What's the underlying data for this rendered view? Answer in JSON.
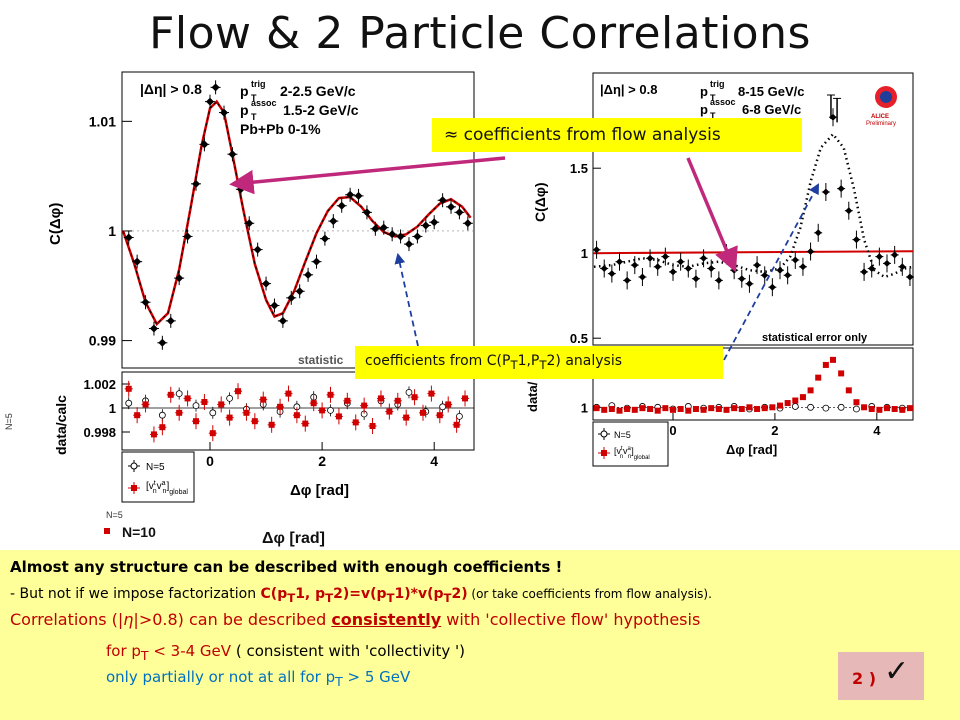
{
  "slide": {
    "title": "Flow & 2 Particle Correlations"
  },
  "chart_data": [
    {
      "type": "scatter",
      "panel": "left-top",
      "ylabel": "C(Δφ)",
      "ylim": [
        0.9875,
        1.0145
      ],
      "yticks": [
        "1.01",
        "1",
        "0.99"
      ],
      "xlim": [
        -1.57,
        4.71
      ],
      "labels": [
        "|Δη| > 0.8",
        "p",
        "trig",
        "T",
        "2-2.5 GeV/c",
        "p",
        "assoc",
        "T",
        "1.5-2 GeV/c",
        "Pb+Pb 0-1%",
        "statistic"
      ],
      "x": [
        -1.45,
        -1.3,
        -1.15,
        -1.0,
        -0.85,
        -0.7,
        -0.55,
        -0.4,
        -0.25,
        -0.1,
        0.0,
        0.1,
        0.25,
        0.4,
        0.55,
        0.7,
        0.85,
        1.0,
        1.15,
        1.3,
        1.45,
        1.6,
        1.75,
        1.9,
        2.05,
        2.2,
        2.35,
        2.5,
        2.65,
        2.8,
        2.95,
        3.1,
        3.25,
        3.4,
        3.55,
        3.7,
        3.85,
        4.0,
        4.15,
        4.3,
        4.45,
        4.6
      ],
      "y": [
        0.9994,
        0.9972,
        0.9935,
        0.9911,
        0.9898,
        0.9918,
        0.9957,
        0.9995,
        1.0043,
        1.0079,
        1.0118,
        1.0131,
        1.0108,
        1.007,
        1.0038,
        1.0007,
        0.9983,
        0.9952,
        0.9932,
        0.9918,
        0.9939,
        0.9945,
        0.996,
        0.9972,
        0.9993,
        1.0009,
        1.0023,
        1.0033,
        1.0032,
        1.0017,
        1.0002,
        1.0003,
        0.9997,
        0.9995,
        0.9988,
        0.9995,
        1.0005,
        1.0008,
        1.0028,
        1.0022,
        1.0017,
        1.0007
      ],
      "fit": [
        [
          -1.55,
          1.0
        ],
        [
          -1.35,
          0.997
        ],
        [
          -1.15,
          0.9935
        ],
        [
          -0.95,
          0.9915
        ],
        [
          -0.75,
          0.9925
        ],
        [
          -0.55,
          0.9965
        ],
        [
          -0.35,
          1.002
        ],
        [
          -0.15,
          1.0078
        ],
        [
          0.0,
          1.0112
        ],
        [
          0.12,
          1.0118
        ],
        [
          0.25,
          1.0108
        ],
        [
          0.4,
          1.007
        ],
        [
          0.6,
          1.0018
        ],
        [
          0.8,
          0.997
        ],
        [
          1.0,
          0.9937
        ],
        [
          1.15,
          0.9922
        ],
        [
          1.3,
          0.9925
        ],
        [
          1.5,
          0.9945
        ],
        [
          1.7,
          0.9972
        ],
        [
          1.9,
          0.9998
        ],
        [
          2.1,
          1.0018
        ],
        [
          2.3,
          1.003
        ],
        [
          2.5,
          1.0031
        ],
        [
          2.7,
          1.0022
        ],
        [
          2.9,
          1.0009
        ],
        [
          3.1,
          0.9999
        ],
        [
          3.3,
          0.9995
        ],
        [
          3.5,
          0.9997
        ],
        [
          3.7,
          1.0004
        ],
        [
          3.9,
          1.0015
        ],
        [
          4.1,
          1.0025
        ],
        [
          4.3,
          1.0029
        ],
        [
          4.5,
          1.0022
        ],
        [
          4.65,
          1.0012
        ]
      ],
      "colors": {
        "points": "#000000",
        "fit": "#d00000"
      }
    },
    {
      "type": "scatter",
      "panel": "left-bottom",
      "ylabel": "data/calc",
      "xlabel": "Δφ [rad]",
      "ylim": [
        0.9965,
        1.003
      ],
      "yticks": [
        "1.002",
        "1",
        "0.998"
      ],
      "xticks": [
        "0",
        "2",
        "4"
      ],
      "xlim": [
        -1.57,
        4.71
      ],
      "legend": [
        "N=5",
        "[v",
        "t",
        "n",
        "v",
        "a",
        "n",
        "]",
        "global"
      ],
      "series_black_open": [
        [
          -1.45,
          1.0004
        ],
        [
          -1.15,
          1.0006
        ],
        [
          -0.85,
          0.9994
        ],
        [
          -0.55,
          1.0012
        ],
        [
          -0.25,
          1.0002
        ],
        [
          0.05,
          0.9996
        ],
        [
          0.35,
          1.0008
        ],
        [
          0.65,
          0.9999
        ],
        [
          0.95,
          1.0003
        ],
        [
          1.25,
          0.9997
        ],
        [
          1.55,
          1.0001
        ],
        [
          1.85,
          1.0009
        ],
        [
          2.15,
          0.9998
        ],
        [
          2.45,
          1.0004
        ],
        [
          2.75,
          0.9995
        ],
        [
          3.05,
          1.0006
        ],
        [
          3.35,
          1.0003
        ],
        [
          3.55,
          1.0013
        ],
        [
          3.85,
          0.9997
        ],
        [
          4.15,
          1.0001
        ],
        [
          4.45,
          0.9993
        ]
      ],
      "series_red": [
        [
          -1.45,
          1.0016
        ],
        [
          -1.3,
          0.9994
        ],
        [
          -1.15,
          1.0003
        ],
        [
          -1.0,
          0.9978
        ],
        [
          -0.85,
          0.9984
        ],
        [
          -0.7,
          1.0011
        ],
        [
          -0.55,
          0.9996
        ],
        [
          -0.4,
          1.0008
        ],
        [
          -0.25,
          0.9989
        ],
        [
          -0.1,
          1.0005
        ],
        [
          0.05,
          0.9979
        ],
        [
          0.2,
          1.0003
        ],
        [
          0.35,
          0.9992
        ],
        [
          0.5,
          1.0014
        ],
        [
          0.65,
          0.9996
        ],
        [
          0.8,
          0.9989
        ],
        [
          0.95,
          1.0007
        ],
        [
          1.1,
          0.9986
        ],
        [
          1.25,
          1.0001
        ],
        [
          1.4,
          1.0012
        ],
        [
          1.55,
          0.9994
        ],
        [
          1.7,
          0.9987
        ],
        [
          1.85,
          1.0004
        ],
        [
          2.0,
          0.9998
        ],
        [
          2.15,
          1.0011
        ],
        [
          2.3,
          0.9993
        ],
        [
          2.45,
          1.0006
        ],
        [
          2.6,
          0.9988
        ],
        [
          2.75,
          1.0002
        ],
        [
          2.9,
          0.9985
        ],
        [
          3.05,
          1.0008
        ],
        [
          3.2,
          0.9997
        ],
        [
          3.35,
          1.0006
        ],
        [
          3.5,
          0.9992
        ],
        [
          3.65,
          1.0009
        ],
        [
          3.8,
          0.9996
        ],
        [
          3.95,
          1.0012
        ],
        [
          4.1,
          0.9994
        ],
        [
          4.25,
          1.0003
        ],
        [
          4.4,
          0.9986
        ],
        [
          4.55,
          1.0008
        ]
      ],
      "colors": {
        "open": "#000000",
        "red": "#d00000"
      }
    },
    {
      "type": "scatter",
      "panel": "right-top",
      "ylabel": "C(Δφ)",
      "ylim": [
        0.46,
        2.06
      ],
      "yticks": [
        "1.5",
        "1",
        "0.5"
      ],
      "xlim": [
        -1.57,
        4.71
      ],
      "labels": [
        "|Δη| > 0.8",
        "p",
        "trig",
        "T",
        "8-15 GeV/c",
        "p",
        "assoc",
        "T",
        "6-8 GeV/c",
        "statistical error only"
      ],
      "logo": "ALICE Preliminary",
      "x": [
        -1.5,
        -1.35,
        -1.2,
        -1.05,
        -0.9,
        -0.75,
        -0.6,
        -0.45,
        -0.3,
        -0.15,
        0.0,
        0.15,
        0.3,
        0.45,
        0.6,
        0.75,
        0.9,
        1.05,
        1.2,
        1.35,
        1.5,
        1.65,
        1.8,
        1.95,
        2.1,
        2.25,
        2.4,
        2.55,
        2.7,
        2.85,
        3.0,
        3.14,
        3.3,
        3.45,
        3.6,
        3.75,
        3.9,
        4.05,
        4.2,
        4.35,
        4.5,
        4.65
      ],
      "y": [
        1.02,
        0.91,
        0.88,
        0.95,
        0.84,
        0.93,
        0.86,
        0.97,
        0.92,
        0.98,
        0.89,
        0.95,
        0.91,
        0.85,
        0.97,
        0.91,
        0.84,
        1.0,
        0.9,
        0.85,
        0.82,
        0.93,
        0.87,
        0.8,
        0.9,
        0.87,
        0.96,
        0.92,
        1.01,
        1.12,
        1.36,
        1.8,
        1.38,
        1.25,
        1.08,
        0.89,
        0.91,
        0.98,
        0.94,
        0.99,
        0.92,
        0.86
      ],
      "high_points": [
        [
          3.1,
          1.86
        ],
        [
          3.22,
          1.84
        ]
      ],
      "flow_line_y": 1.0,
      "dotted_fit": [
        [
          -1.55,
          0.92
        ],
        [
          -1.2,
          0.93
        ],
        [
          -0.9,
          0.95
        ],
        [
          -0.6,
          0.97
        ],
        [
          -0.3,
          0.96
        ],
        [
          0.0,
          0.93
        ],
        [
          0.3,
          0.92
        ],
        [
          0.6,
          0.94
        ],
        [
          0.9,
          0.95
        ],
        [
          1.2,
          0.93
        ],
        [
          1.5,
          0.9
        ],
        [
          1.8,
          0.89
        ],
        [
          2.1,
          0.91
        ],
        [
          2.3,
          0.98
        ],
        [
          2.5,
          1.15
        ],
        [
          2.7,
          1.42
        ],
        [
          2.9,
          1.62
        ],
        [
          3.14,
          1.7
        ],
        [
          3.35,
          1.62
        ],
        [
          3.55,
          1.38
        ],
        [
          3.75,
          1.08
        ],
        [
          3.95,
          0.9
        ],
        [
          4.15,
          0.86
        ],
        [
          4.35,
          0.88
        ],
        [
          4.55,
          0.91
        ],
        [
          4.7,
          0.92
        ]
      ],
      "colors": {
        "points": "#000000",
        "flow_line": "#d00000",
        "dotted": "#000000"
      }
    },
    {
      "type": "scatter",
      "panel": "right-bottom",
      "ylabel": "data/",
      "xlabel": "Δφ [rad]",
      "yticks": [
        "1"
      ],
      "xticks": [
        "0",
        "2",
        "4"
      ],
      "xlim": [
        -1.57,
        4.71
      ],
      "legend": [
        "N=5",
        "[v",
        "t",
        "n",
        "v",
        "a",
        "n",
        "]",
        "global"
      ],
      "series_black_open": [
        [
          -1.5,
          1.0
        ],
        [
          -1.2,
          1.02
        ],
        [
          -0.9,
          0.99
        ],
        [
          -0.6,
          1.01
        ],
        [
          -0.3,
          1.0
        ],
        [
          0.0,
          0.98
        ],
        [
          0.3,
          1.01
        ],
        [
          0.6,
          0.99
        ],
        [
          0.9,
          1.0
        ],
        [
          1.2,
          1.01
        ],
        [
          1.5,
          0.98
        ],
        [
          1.8,
          1.0
        ],
        [
          2.1,
          0.99
        ],
        [
          2.4,
          1.01
        ],
        [
          2.7,
          1.0
        ],
        [
          3.0,
          0.99
        ],
        [
          3.3,
          1.0
        ],
        [
          3.6,
          0.98
        ],
        [
          3.9,
          1.01
        ],
        [
          4.2,
          1.0
        ],
        [
          4.5,
          0.99
        ]
      ],
      "series_red": [
        [
          -1.5,
          0.99
        ],
        [
          -1.35,
          0.97
        ],
        [
          -1.2,
          0.98
        ],
        [
          -1.05,
          0.96
        ],
        [
          -0.9,
          0.98
        ],
        [
          -0.75,
          0.97
        ],
        [
          -0.6,
          0.99
        ],
        [
          -0.45,
          0.98
        ],
        [
          -0.3,
          0.96
        ],
        [
          -0.15,
          0.99
        ],
        [
          0.0,
          0.97
        ],
        [
          0.15,
          0.98
        ],
        [
          0.3,
          0.96
        ],
        [
          0.45,
          0.98
        ],
        [
          0.6,
          0.97
        ],
        [
          0.75,
          0.99
        ],
        [
          0.9,
          0.98
        ],
        [
          1.05,
          0.97
        ],
        [
          1.2,
          0.99
        ],
        [
          1.35,
          0.98
        ],
        [
          1.5,
          1.0
        ],
        [
          1.65,
          0.98
        ],
        [
          1.8,
          0.99
        ],
        [
          1.95,
          1.0
        ],
        [
          2.1,
          1.02
        ],
        [
          2.25,
          1.05
        ],
        [
          2.4,
          1.08
        ],
        [
          2.55,
          1.12
        ],
        [
          2.7,
          1.2
        ],
        [
          2.85,
          1.35
        ],
        [
          3.0,
          1.5
        ],
        [
          3.14,
          1.56
        ],
        [
          3.3,
          1.4
        ],
        [
          3.45,
          1.2
        ],
        [
          3.6,
          1.06
        ],
        [
          3.75,
          1.0
        ],
        [
          3.9,
          0.98
        ],
        [
          4.05,
          0.97
        ],
        [
          4.2,
          0.99
        ],
        [
          4.35,
          0.98
        ],
        [
          4.5,
          0.97
        ],
        [
          4.65,
          0.99
        ]
      ],
      "colors": {
        "open": "#000000",
        "red": "#d00000"
      }
    }
  ],
  "ghost": {
    "legend_n10": "N=10",
    "xlabel": "Δφ [rad]",
    "partial_label": "N=5"
  },
  "callouts": {
    "flow": "≈ coefficients from flow analysis",
    "cpt": [
      "coefficients  from  C(P",
      "T",
      "1,P",
      "T",
      "2) analysis"
    ]
  },
  "notes": {
    "line1": "Almost any structure can be described with enough coefficients !",
    "line2": [
      "- But not if we impose factorization ",
      "C(p",
      "T",
      "1, p",
      "T",
      "2)=v(p",
      "T",
      "1)*v(p",
      "T",
      "2)",
      " (or take coefficients from flow analysis)."
    ],
    "line3": [
      "Correlations (|",
      "η",
      "|>0.8)  can be described ",
      "consistently",
      " with 'collective flow' hypothesis"
    ],
    "line4": [
      "for p",
      "T",
      " < 3-4 GeV",
      "  ( consistent  with 'collectivity ')"
    ],
    "line5": [
      "only partially or not at all for p",
      "T",
      " > 5 GeV"
    ]
  },
  "badge": {
    "label": "2 )",
    "icon": "check-icon",
    "check": "✓"
  }
}
